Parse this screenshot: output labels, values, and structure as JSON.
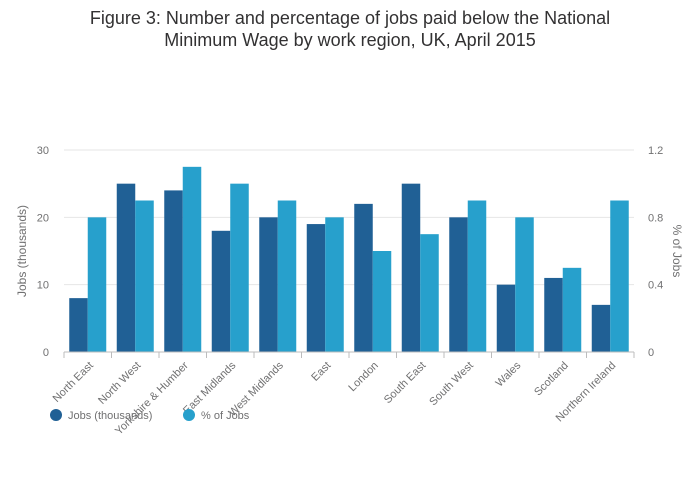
{
  "chart_data": {
    "type": "bar",
    "title_lines": [
      "Figure 3: Number and percentage of jobs paid below the National",
      "Minimum Wage by work region, UK, April 2015"
    ],
    "categories": [
      "North East",
      "North West",
      "Yorkshire & Humber",
      "East Midlands",
      "West Midlands",
      "East",
      "London",
      "South East",
      "South West",
      "Wales",
      "Scotland",
      "Northern Ireland"
    ],
    "series": [
      {
        "name": "Jobs (thousands)",
        "axis": "left",
        "color": "#206095",
        "values": [
          8,
          25,
          24,
          18,
          20,
          19,
          22,
          25,
          20,
          10,
          11,
          7
        ]
      },
      {
        "name": "% of Jobs",
        "axis": "right",
        "color": "#27a0cc",
        "values": [
          0.8,
          0.9,
          1.1,
          1.0,
          0.9,
          0.8,
          0.6,
          0.7,
          0.9,
          0.8,
          0.5,
          0.9
        ]
      }
    ],
    "ylabel": "Jobs (thousands)",
    "ylim": [
      0,
      30
    ],
    "yticks": [
      "0",
      "10",
      "20",
      "30"
    ],
    "y2label": "% of Jobs",
    "y2lim": [
      0,
      1.2
    ],
    "y2ticks": [
      "0",
      "0.4",
      "0.8",
      "1.2"
    ],
    "legend_position": "bottom-left",
    "grid": true
  }
}
